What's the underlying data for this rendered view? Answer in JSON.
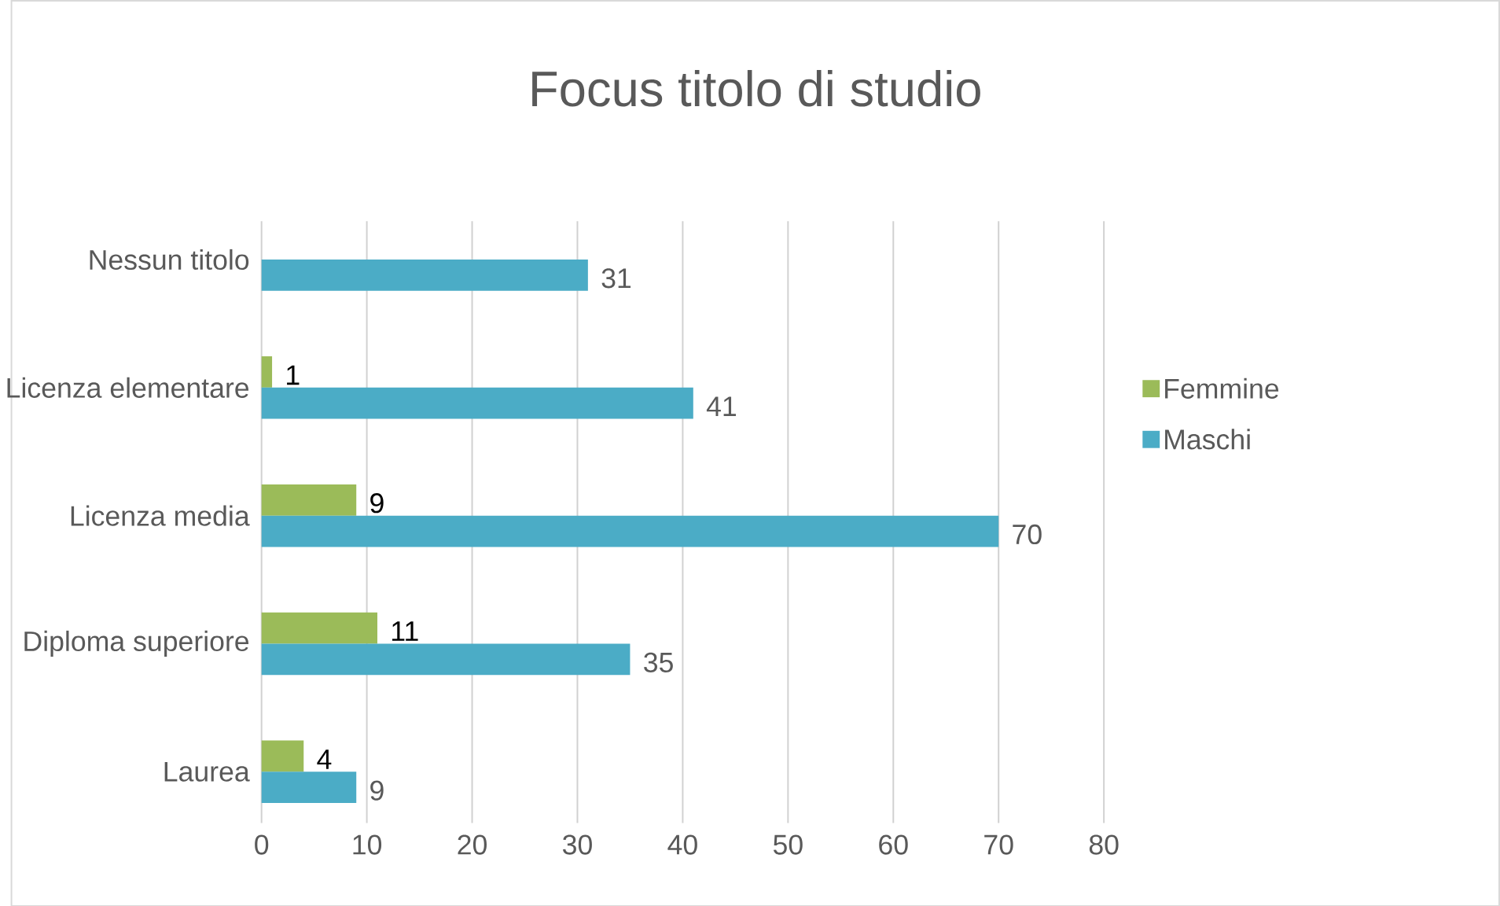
{
  "chart_data": {
    "type": "bar",
    "orientation": "horizontal",
    "title": "Focus titolo di studio",
    "categories": [
      "Nessun titolo",
      "Licenza elementare",
      "Licenza media",
      "Diploma superiore",
      "Laurea"
    ],
    "series": [
      {
        "name": "Femmine",
        "color": "#9bbb59",
        "values": [
          null,
          1,
          9,
          11,
          4
        ]
      },
      {
        "name": "Maschi",
        "color": "#4bacc6",
        "values": [
          31,
          41,
          70,
          35,
          9
        ]
      }
    ],
    "xlim": [
      0,
      80
    ],
    "xticks": [
      0,
      10,
      20,
      30,
      40,
      50,
      60,
      70,
      80
    ],
    "grid": "x",
    "legend": "right",
    "data_labels": true
  }
}
